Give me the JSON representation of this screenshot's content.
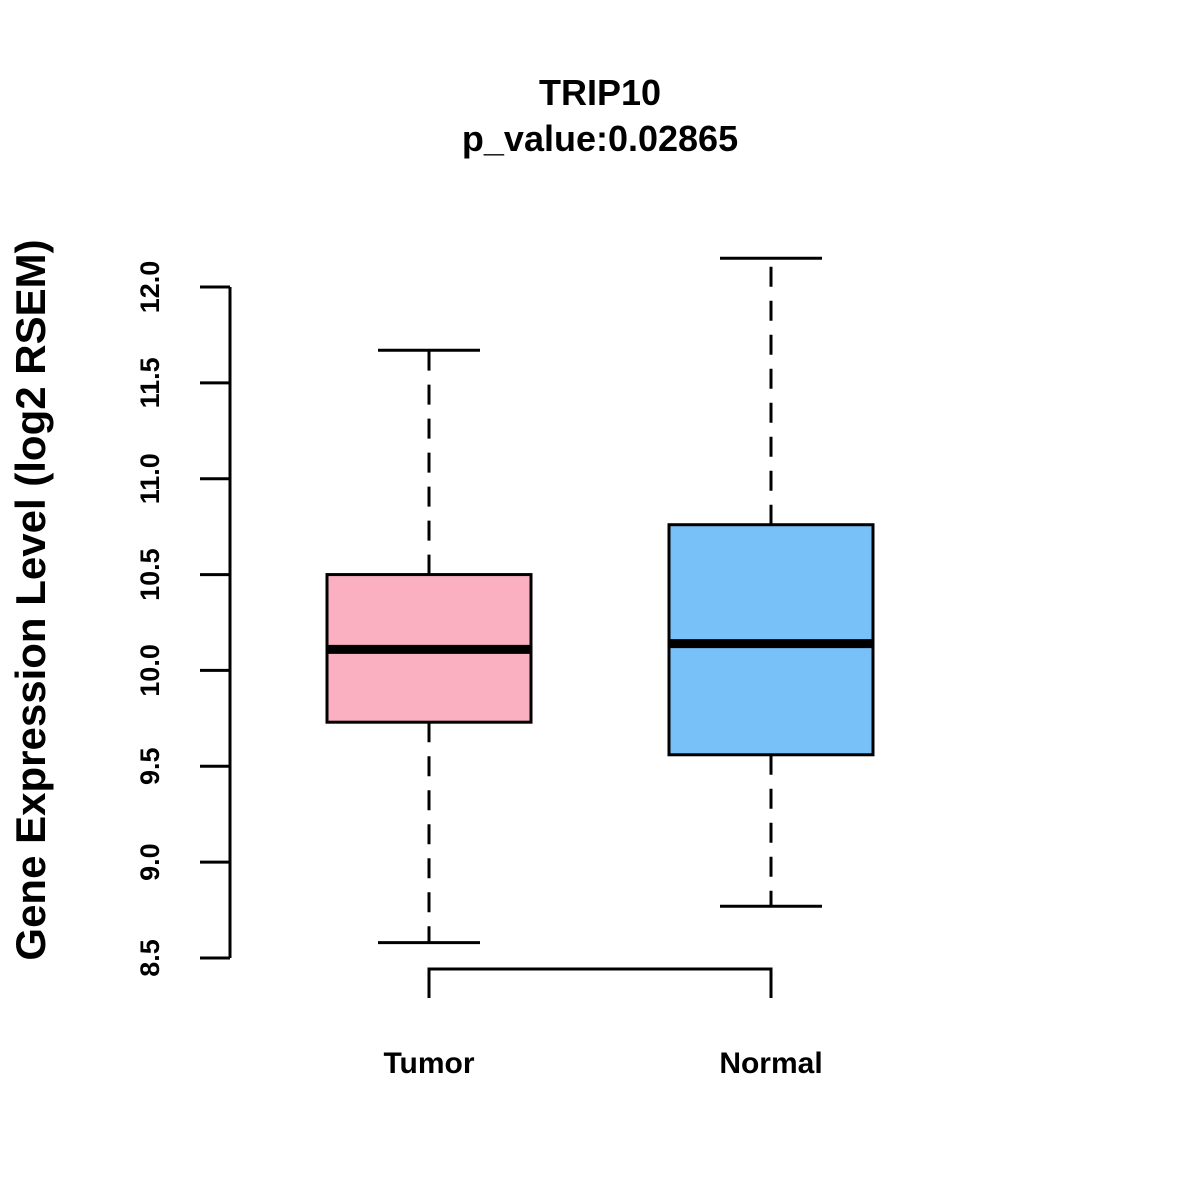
{
  "chart_data": {
    "type": "box",
    "title": "TRIP10",
    "subtitle": "p_value:0.02865",
    "xlabel": "",
    "ylabel": "Gene Expression Level (log2 RSEM)",
    "ylim": [
      8.5,
      12.0
    ],
    "yticks": [
      8.5,
      9.0,
      9.5,
      10.0,
      10.5,
      11.0,
      11.5,
      12.0
    ],
    "ytick_labels": [
      "8.5",
      "9.0",
      "9.5",
      "10.0",
      "10.5",
      "11.0",
      "11.5",
      "12.0"
    ],
    "grid": false,
    "groups": [
      {
        "name": "Tumor",
        "color": "#FBB0C2",
        "whisker_low": 8.58,
        "q1": 9.73,
        "median": 10.11,
        "q3": 10.5,
        "whisker_high": 11.67
      },
      {
        "name": "Normal",
        "color": "#78C1F8",
        "whisker_low": 8.77,
        "q1": 9.56,
        "median": 10.14,
        "q3": 10.76,
        "whisker_high": 12.15
      }
    ],
    "significance_bracket": {
      "from": "Tumor",
      "to": "Normal",
      "label": ""
    }
  }
}
